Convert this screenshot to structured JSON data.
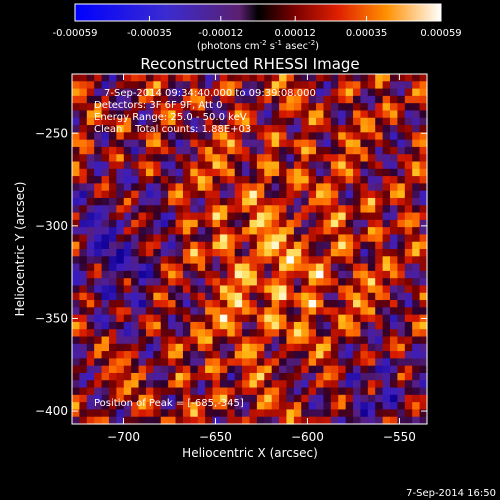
{
  "chart_data": {
    "type": "heatmap",
    "title": "Reconstructed RHESSI Image",
    "xlabel": "Heliocentric X (arcsec)",
    "ylabel": "Heliocentric Y (arcsec)",
    "xlim": [
      -728,
      -535
    ],
    "ylim": [
      -407,
      -218
    ],
    "x_ticks": [
      -700,
      -650,
      -600,
      -550
    ],
    "y_ticks": [
      -250,
      -300,
      -350,
      -400
    ],
    "colorbar": {
      "range": [
        -0.00059,
        0.00059
      ],
      "ticks": [
        "-0.00059",
        "-0.00035",
        "-0.00012",
        "0.00012",
        "0.00035",
        "0.00059"
      ],
      "tick_values": [
        -0.00059,
        -0.00035,
        -0.00012,
        0.00012,
        0.00035,
        0.00059
      ],
      "units_main": "(photons cm",
      "units_sup1": "-2",
      "units_mid1": " s",
      "units_sup2": "-1",
      "units_mid2": " asec",
      "units_sup3": "-2",
      "units_end": ")"
    },
    "annotations": [
      "7-Sep-2014 09:34:40.000 to 09:39:08.000",
      "Detectors: 3F 6F 9F, Att 0",
      "Energy Range: 25.0 - 50.0 keV",
      "Clean    Total counts: 1.88E+03"
    ],
    "peak_label": "Position of Peak = [-685,-345]",
    "peak_position": [
      -685,
      -345
    ],
    "grid": false
  },
  "footer_timestamp": "7-Sep-2014 16:50"
}
